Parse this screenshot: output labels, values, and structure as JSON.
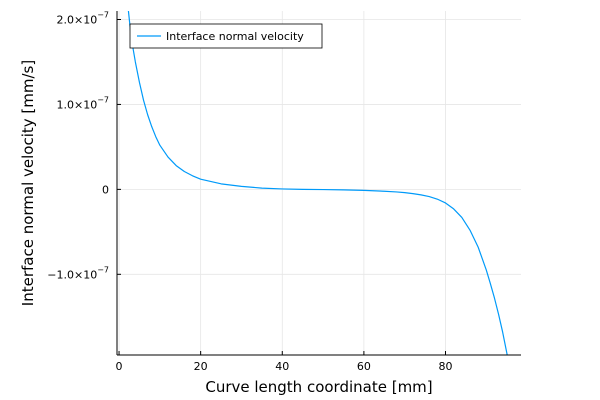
{
  "chart_data": {
    "type": "line",
    "title": "",
    "xlabel": "Curve length coordinate [mm]",
    "ylabel": "Interface normal velocity [mm/s]",
    "xlim": [
      -0.5,
      98.5
    ],
    "ylim": [
      -1.95e-07,
      2.1e-07
    ],
    "grid": true,
    "legend_position": "top-left",
    "x_ticks": [
      0,
      20,
      40,
      60,
      80
    ],
    "x_tick_labels": [
      "0",
      "20",
      "40",
      "60",
      "80"
    ],
    "y_ticks": [
      -1e-07,
      0,
      1e-07,
      2e-07
    ],
    "y_tick_labels": [
      {
        "base": "−1.0×10",
        "exp": "−7"
      },
      {
        "base": "0",
        "exp": ""
      },
      {
        "base": "1.0×10",
        "exp": "−7"
      },
      {
        "base": "2.0×10",
        "exp": "−7"
      }
    ],
    "series": [
      {
        "name": "Interface normal velocity",
        "color": "#009af9",
        "x": [
          2.3,
          3,
          4,
          5,
          6,
          7,
          8,
          9,
          10,
          12,
          14,
          16,
          18,
          20,
          25,
          30,
          35,
          40,
          45,
          50,
          55,
          60,
          65,
          68,
          70,
          72,
          74,
          76,
          78,
          80,
          82,
          84,
          86,
          88,
          90,
          91,
          92,
          93,
          94,
          95,
          96,
          96.7
        ],
        "y": [
          2.1e-07,
          1.78e-07,
          1.5e-07,
          1.26e-07,
          1.05e-07,
          8.8e-08,
          7.4e-08,
          6.2e-08,
          5.2e-08,
          3.8e-08,
          2.8e-08,
          2.1e-08,
          1.6e-08,
          1.2e-08,
          6.5e-09,
          3.5e-09,
          1.5e-09,
          5e-10,
          0,
          -2e-10,
          -6e-10,
          -1.2e-09,
          -2.2e-09,
          -3e-09,
          -3.8e-09,
          -5e-09,
          -6.5e-09,
          -8.5e-09,
          -1.15e-08,
          -1.6e-08,
          -2.3e-08,
          -3.3e-08,
          -4.8e-08,
          -6.8e-08,
          -9.5e-08,
          -1.11e-07,
          -1.28e-07,
          -1.47e-07,
          -1.68e-07,
          -1.92e-07,
          -2.18e-07,
          -2.4e-07
        ]
      }
    ]
  }
}
